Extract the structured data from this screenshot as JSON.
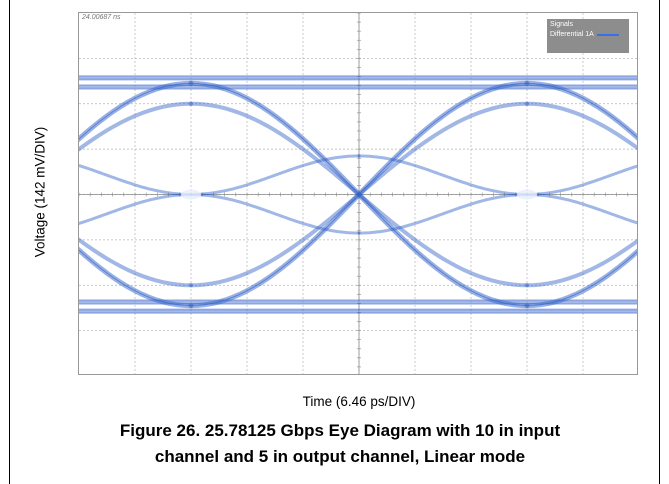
{
  "chart_data": {
    "type": "eye-diagram",
    "ylabel": "Voltage (142 mV/DIV)",
    "xlabel": "Time (6.46 ps/DIV)",
    "timestamp": "24.00687 ns",
    "legend": {
      "title": "Signals",
      "entries": [
        {
          "name": "Differential 1A",
          "color": "#3b6fe8"
        }
      ]
    },
    "caption_line1": "Figure 26.  25.78125 Gbps Eye Diagram with 10 in input",
    "caption_line2": "channel and 5 in output channel, Linear mode",
    "grid": true,
    "divisions": {
      "x": 10,
      "y": 8
    },
    "trace_color": "#2f5fc8",
    "levels_div": [
      1.55,
      2.0,
      3.15,
      4.85,
      6.0,
      6.45
    ],
    "crossing_times_div": [
      2.0,
      8.0
    ]
  }
}
